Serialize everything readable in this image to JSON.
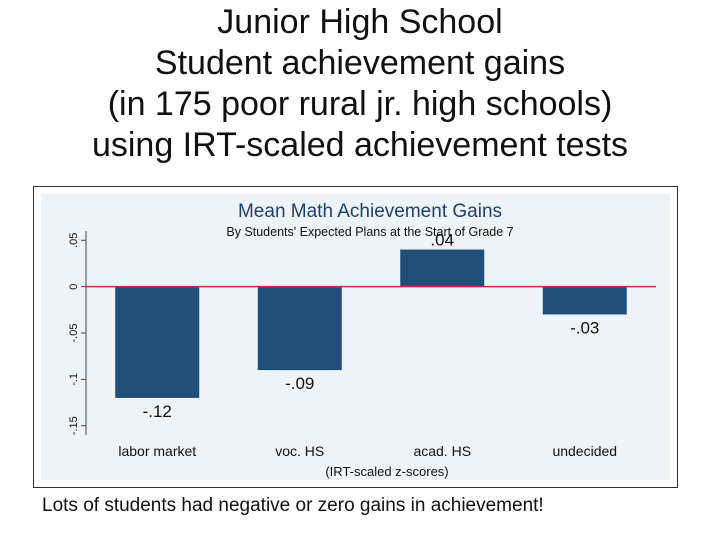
{
  "slide": {
    "title_lines": [
      "Junior High School",
      "Student achievement gains",
      "(in 175 poor rural jr. high schools)",
      "using IRT-scaled achievement tests"
    ],
    "caption": "Lots of students had negative or zero gains in achievement!"
  },
  "chart_data": {
    "type": "bar",
    "title": "Mean Math Achievement Gains",
    "subtitle": "By Students' Expected Plans at the Start of Grade 7",
    "xlabel": "(IRT-scaled z-scores)",
    "ylabel": "",
    "categories": [
      "labor market",
      "voc. HS",
      "acad. HS",
      "undecided"
    ],
    "values": [
      -0.12,
      -0.09,
      0.04,
      -0.03
    ],
    "value_labels": [
      "-.12",
      "-.09",
      ".04",
      "-.03"
    ],
    "ylim": [
      -0.16,
      0.06
    ],
    "yticks": [
      0.05,
      0,
      -0.05,
      -0.1,
      -0.15
    ],
    "ytick_labels": [
      ".05",
      "0",
      "-.05",
      "-.1",
      "-.15"
    ],
    "reference_line": 0,
    "grid": false,
    "colors": {
      "bar": "#1f4e79",
      "reference_line": "#c0304a",
      "title": "#1f3f6e",
      "background": "#eef3f7"
    }
  }
}
